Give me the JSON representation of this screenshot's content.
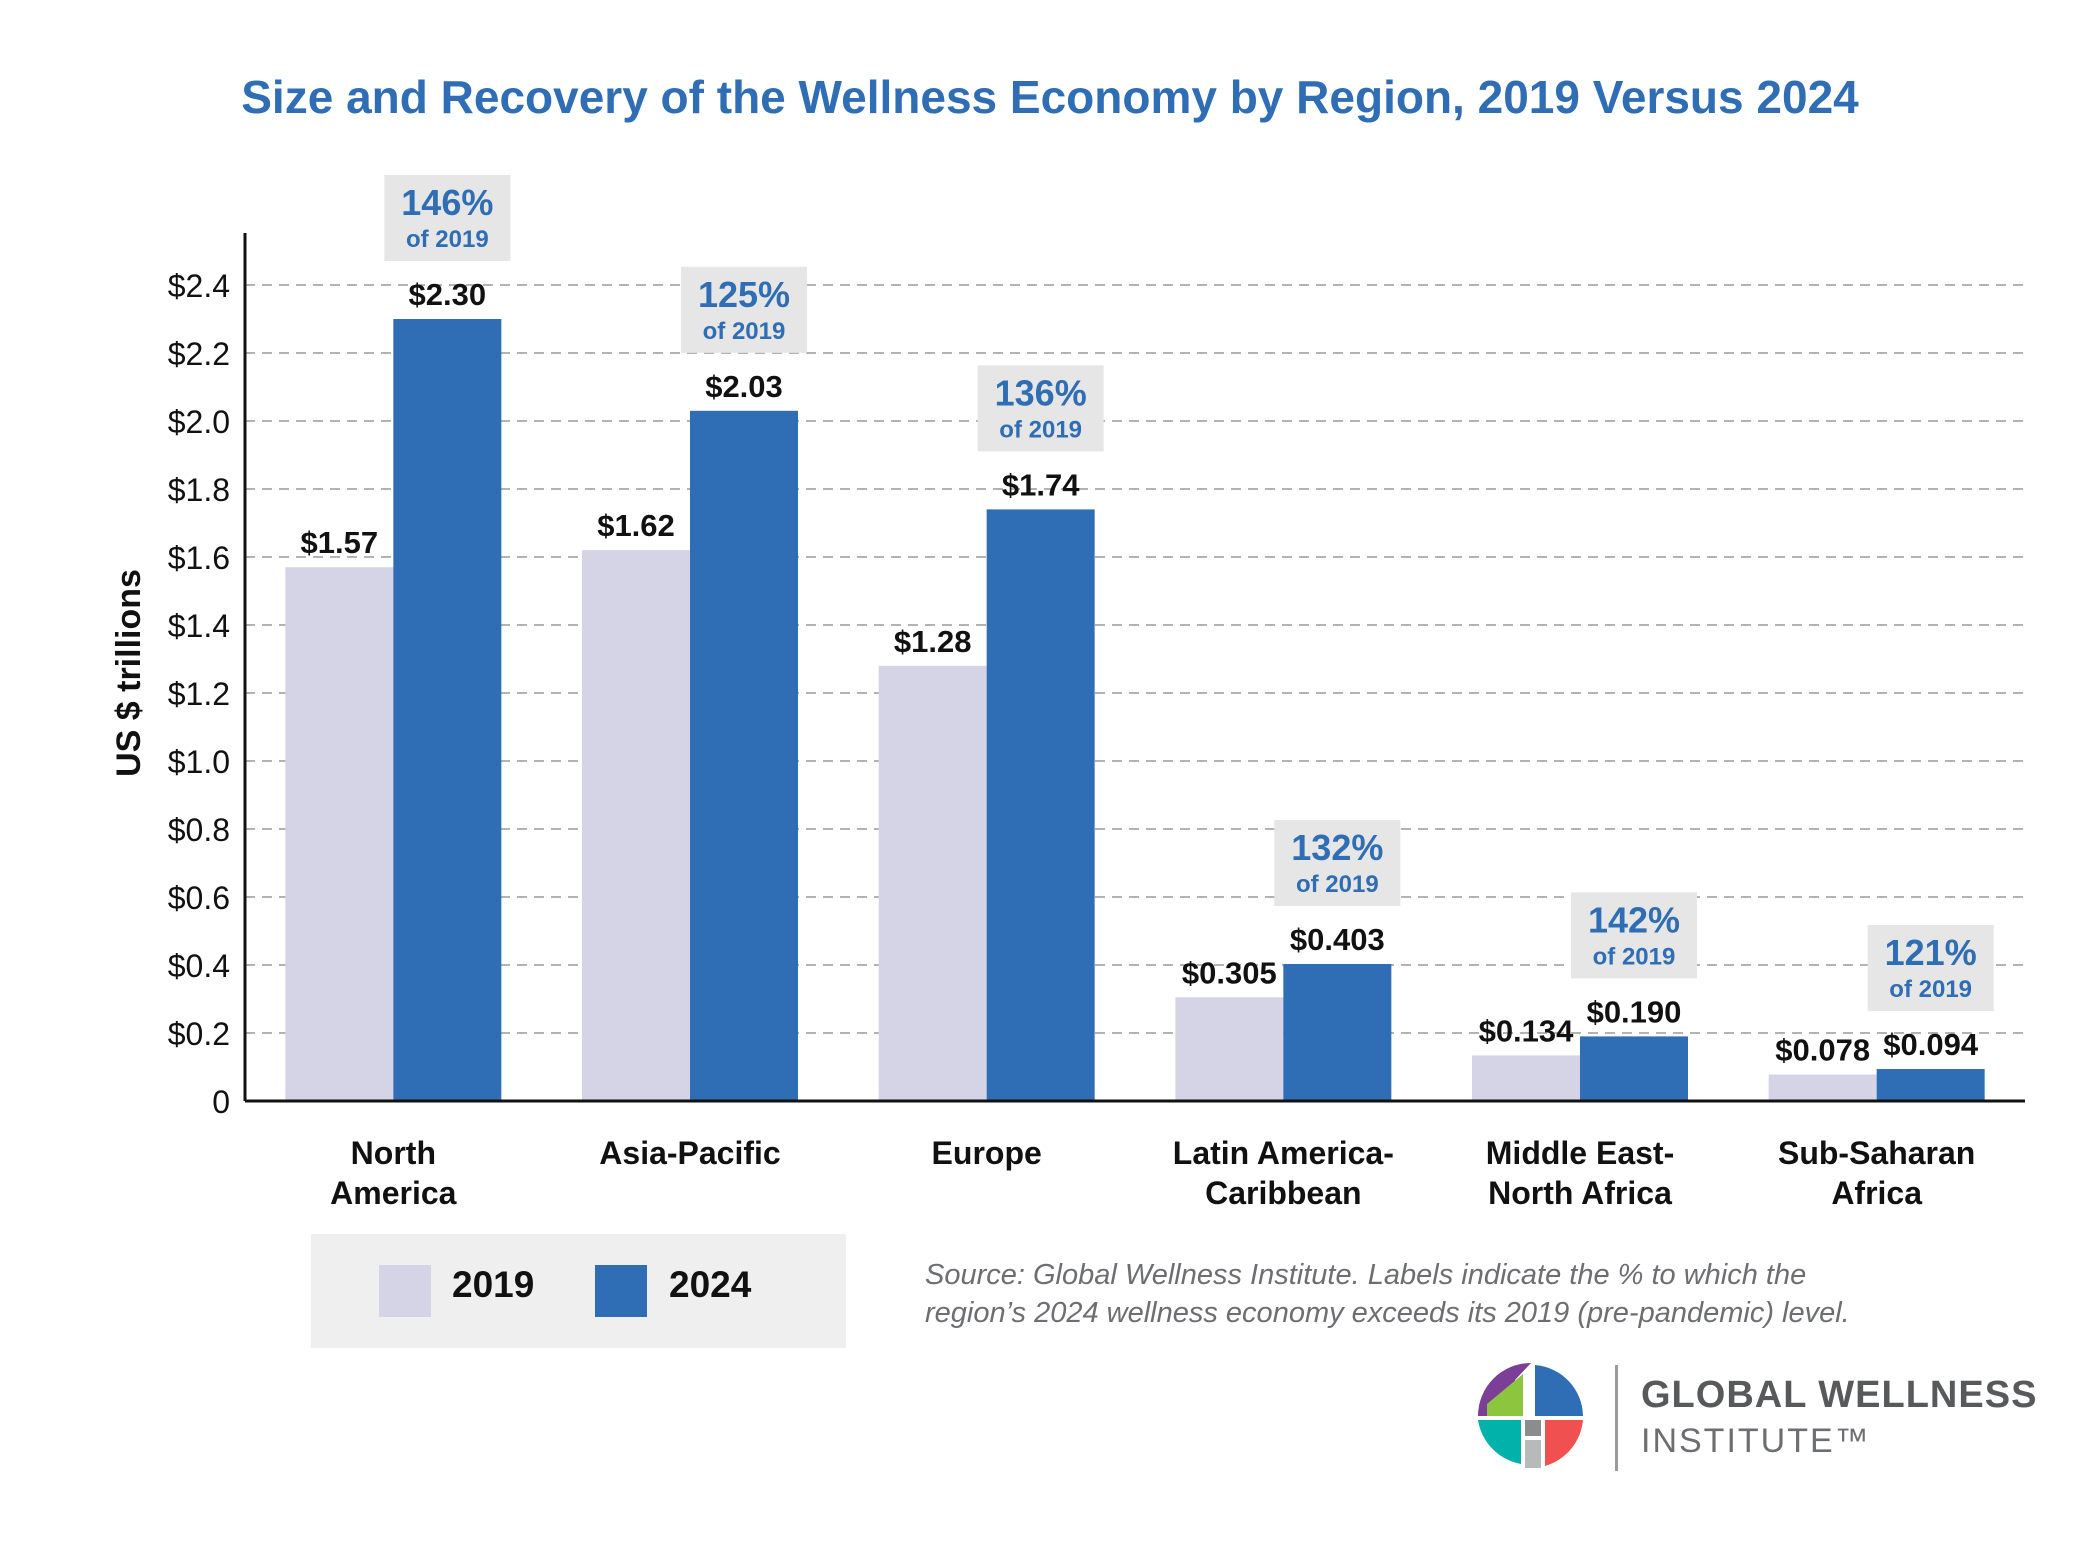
{
  "chart_data": {
    "type": "bar",
    "title": "Size and Recovery of the Wellness Economy by Region, 2019 Versus 2024",
    "ylabel": "US $ trillions",
    "xlabel": "",
    "ylim": [
      0,
      2.5
    ],
    "yticks": [
      0,
      0.2,
      0.4,
      0.6,
      0.8,
      1.0,
      1.2,
      1.4,
      1.6,
      1.8,
      2.0,
      2.2,
      2.4
    ],
    "ytick_labels": [
      "0",
      "$0.2",
      "$0.4",
      "$0.6",
      "$0.8",
      "$1.0",
      "$1.2",
      "$1.4",
      "$1.6",
      "$1.8",
      "$2.0",
      "$2.2",
      "$2.4"
    ],
    "grid": true,
    "categories": [
      [
        "North",
        "America"
      ],
      [
        "Asia-Pacific"
      ],
      [
        "Europe"
      ],
      [
        "Latin America-",
        "Caribbean"
      ],
      [
        "Middle East-",
        "North Africa"
      ],
      [
        "Sub-Saharan",
        "Africa"
      ]
    ],
    "series": [
      {
        "name": "2019",
        "color": "#d5d3e6",
        "values": [
          1.57,
          1.62,
          1.28,
          0.305,
          0.134,
          0.078
        ],
        "labels": [
          "$1.57",
          "$1.62",
          "$1.28",
          "$0.305",
          "$0.134",
          "$0.078"
        ]
      },
      {
        "name": "2024",
        "color": "#2f6db4",
        "values": [
          2.3,
          2.03,
          1.74,
          0.403,
          0.19,
          0.094
        ],
        "labels": [
          "$2.30",
          "$2.03",
          "$1.74",
          "$0.403",
          "$0.190",
          "$0.094"
        ]
      }
    ],
    "annotations": [
      {
        "pct": "146%",
        "sub": "of 2019"
      },
      {
        "pct": "125%",
        "sub": "of 2019"
      },
      {
        "pct": "136%",
        "sub": "of 2019"
      },
      {
        "pct": "132%",
        "sub": "of 2019"
      },
      {
        "pct": "142%",
        "sub": "of 2019"
      },
      {
        "pct": "121%",
        "sub": "of 2019"
      }
    ],
    "legend_position": "bottom-left"
  },
  "legend": {
    "items": [
      {
        "label": "2019",
        "color": "#d5d3e6"
      },
      {
        "label": "2024",
        "color": "#2f6db4"
      }
    ]
  },
  "source_note": {
    "line1": "Source: Global Wellness Institute. Labels indicate the % to which the",
    "line2": "region’s 2024 wellness economy exceeds its 2019 (pre-pandemic) level."
  },
  "brand": {
    "name": "GLOBAL WELLNESS",
    "sub": "INSTITUTE™",
    "logo_icon": "global-wellness-institute-logo"
  },
  "colors": {
    "title": "#2f6db4",
    "annotation_text": "#2f6db4",
    "annotation_box": "#e6e6e6",
    "gridline": "#b3b3b3",
    "axis": "#111111"
  }
}
